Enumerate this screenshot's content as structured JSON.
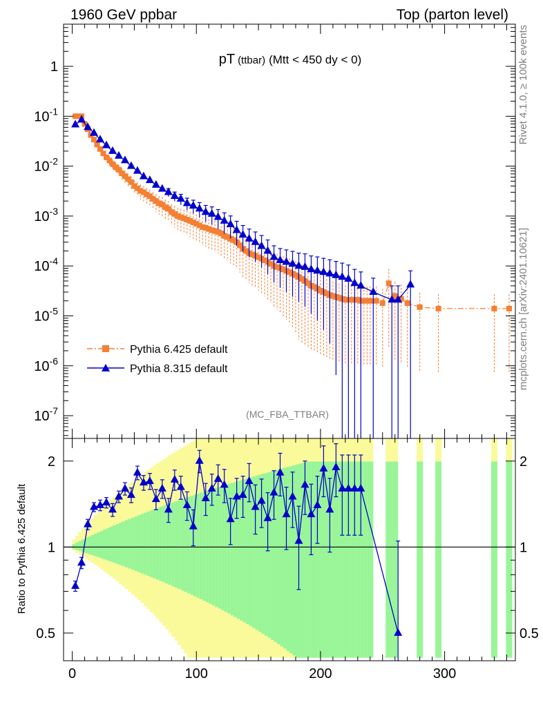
{
  "header": {
    "energy": "1960 GeV ppbar",
    "process": "Top (parton level)",
    "side_top": "Rivet 4.1.0, ≥ 100k events",
    "side_bottom": "mcplots.cern.ch [arXiv:2401.10621]"
  },
  "chart_data": [
    {
      "type": "line",
      "title_main": "pT",
      "title_sub": "(ttbar)",
      "title_tail": "(Mtt < 450 dy < 0)",
      "analysis_tag": "(MC_FBA_TTBAR)",
      "yscale": "log",
      "xlim": [
        -7,
        357
      ],
      "ylim": [
        3.5e-08,
        7
      ],
      "ytick_labels": [
        "10^-7",
        "10^-6",
        "10^-5",
        "10^-4",
        "10^-3",
        "10^-2",
        "10^-1",
        "1"
      ],
      "legend": [
        "Pythia 6.425 default",
        "Pythia 8.315 default"
      ],
      "legend_loc": "lower-left",
      "series": [
        {
          "name": "Pythia 6.425 default",
          "color": "#f57f32",
          "marker": "square",
          "line": "dash-dot",
          "x": [
            2.5,
            5,
            7.5,
            10,
            12.5,
            15,
            17.5,
            20,
            22.5,
            25,
            27.5,
            30,
            32.5,
            35,
            37.5,
            40,
            42.5,
            45,
            47.5,
            50,
            52.5,
            55,
            57.5,
            60,
            62.5,
            65,
            67.5,
            70,
            72.5,
            75,
            77.5,
            80,
            82.5,
            85,
            87.5,
            90,
            92.5,
            95,
            97.5,
            100,
            102.5,
            105,
            107.5,
            110,
            112.5,
            115,
            117.5,
            120,
            122.5,
            125,
            127.5,
            130,
            132.5,
            135,
            137.5,
            140,
            142.5,
            145,
            147.5,
            150,
            152.5,
            155,
            157.5,
            160,
            162.5,
            165,
            167.5,
            170,
            172.5,
            175,
            177.5,
            180,
            182.5,
            185,
            187.5,
            190,
            192.5,
            195,
            197.5,
            200,
            202.5,
            205,
            207.5,
            210,
            212.5,
            215,
            217.5,
            220,
            222.5,
            225,
            227.5,
            230,
            232.5,
            235,
            237.5,
            240,
            245,
            250,
            255,
            260,
            265,
            270,
            280,
            295,
            340,
            352
          ],
          "y": [
            0.1,
            0.1,
            0.1,
            0.07,
            0.055,
            0.042,
            0.034,
            0.027,
            0.022,
            0.018,
            0.015,
            0.013,
            0.011,
            0.0095,
            0.0085,
            0.0072,
            0.0063,
            0.0055,
            0.0048,
            0.004,
            0.0036,
            0.0032,
            0.003,
            0.0027,
            0.0025,
            0.0022,
            0.002,
            0.0018,
            0.0017,
            0.0015,
            0.0014,
            0.0012,
            0.0011,
            0.001,
            0.00095,
            0.0009,
            0.00085,
            0.0008,
            0.00075,
            0.0007,
            0.00065,
            0.0006,
            0.00058,
            0.00055,
            0.00052,
            0.0005,
            0.00048,
            0.00045,
            0.0004,
            0.00038,
            0.00035,
            0.00033,
            0.0003,
            0.00026,
            0.00022,
            0.0002,
            0.00018,
            0.00017,
            0.00016,
            0.00015,
            0.00014,
            0.00013,
            0.00012,
            0.00011,
            0.0001,
            9.5e-05,
            9e-05,
            8.5e-05,
            8e-05,
            7.5e-05,
            7e-05,
            6.5e-05,
            6e-05,
            5.5e-05,
            5e-05,
            4.5e-05,
            4e-05,
            3.8e-05,
            3.5e-05,
            3.2e-05,
            3e-05,
            2.8e-05,
            2.6e-05,
            2.5e-05,
            2.4e-05,
            2.3e-05,
            2.2e-05,
            2.1e-05,
            2.1e-05,
            2.1e-05,
            2.1e-05,
            2.1e-05,
            2e-05,
            2e-05,
            2e-05,
            2e-05,
            2e-05,
            1.8e-05,
            4.5e-05,
            2.5e-05,
            2.2e-05,
            1.8e-05,
            1.5e-05,
            1.4e-05,
            1.4e-05,
            1.4e-05
          ]
        },
        {
          "name": "Pythia 8.315 default",
          "color": "#0000cc",
          "marker": "triangle",
          "line": "solid",
          "x": [
            2.5,
            7.5,
            12.5,
            17.5,
            22.5,
            27.5,
            32.5,
            37.5,
            42.5,
            47.5,
            52.5,
            57.5,
            62.5,
            67.5,
            72.5,
            77.5,
            82.5,
            87.5,
            92.5,
            97.5,
            102.5,
            107.5,
            112.5,
            117.5,
            122.5,
            127.5,
            132.5,
            137.5,
            142.5,
            147.5,
            152.5,
            157.5,
            162.5,
            167.5,
            172.5,
            177.5,
            182.5,
            187.5,
            192.5,
            197.5,
            202.5,
            207.5,
            212.5,
            217.5,
            222.5,
            227.5,
            232.5,
            242.5,
            257.5,
            262.5,
            272.5
          ],
          "y": [
            0.068,
            0.085,
            0.06,
            0.046,
            0.034,
            0.026,
            0.02,
            0.016,
            0.013,
            0.01,
            0.008,
            0.0062,
            0.0052,
            0.0042,
            0.0035,
            0.003,
            0.0025,
            0.0022,
            0.0018,
            0.0016,
            0.0014,
            0.0012,
            0.0011,
            0.00095,
            0.0008,
            0.00068,
            0.00052,
            0.00042,
            0.00035,
            0.0003,
            0.00025,
            0.0002,
            0.00015,
            0.00013,
            0.00012,
            0.00011,
            0.0001,
            9.5e-05,
            8.5e-05,
            8e-05,
            7.5e-05,
            7e-05,
            6.5e-05,
            6e-05,
            5.5e-05,
            4.5e-05,
            4e-05,
            3e-05,
            2.1e-05,
            2.1e-05,
            4.2e-05
          ]
        }
      ]
    },
    {
      "type": "line",
      "ylabel": "Ratio to Pythia 6.425 default",
      "yscale": "log",
      "xlim": [
        -7,
        357
      ],
      "ylim": [
        0.4,
        2.4
      ],
      "xticks": [
        0,
        100,
        200,
        300
      ],
      "yticks": [
        0.5,
        1,
        2
      ],
      "band_colors": {
        "inner": "#98f598",
        "outer": "#fafa9a"
      },
      "series": [
        {
          "name": "Pythia 8.315 default",
          "color": "#0000cc",
          "marker": "triangle",
          "x": [
            2.5,
            7.5,
            12.5,
            17.5,
            22.5,
            27.5,
            32.5,
            37.5,
            42.5,
            47.5,
            52.5,
            57.5,
            62.5,
            67.5,
            72.5,
            77.5,
            82.5,
            87.5,
            92.5,
            97.5,
            102.5,
            107.5,
            112.5,
            117.5,
            122.5,
            127.5,
            132.5,
            137.5,
            142.5,
            147.5,
            152.5,
            157.5,
            162.5,
            167.5,
            172.5,
            177.5,
            182.5,
            187.5,
            192.5,
            197.5,
            202.5,
            207.5,
            212.5,
            217.5,
            222.5,
            227.5,
            232.5,
            262.5
          ],
          "y": [
            0.73,
            0.88,
            1.2,
            1.38,
            1.4,
            1.43,
            1.35,
            1.5,
            1.6,
            1.52,
            1.82,
            1.68,
            1.7,
            1.47,
            1.6,
            1.35,
            1.72,
            1.62,
            1.4,
            1.18,
            2,
            1.48,
            1.6,
            1.73,
            1.65,
            1.25,
            1.5,
            1.52,
            1.7,
            1.38,
            1.45,
            1.26,
            1.55,
            1.82,
            1.3,
            1.5,
            1.05,
            1.65,
            1.3,
            1.4,
            1.88,
            1.35,
            1.9,
            1.6,
            1.6,
            1.6,
            1.6,
            0.5
          ],
          "yerr": [
            0.03,
            0.04,
            0.05,
            0.05,
            0.06,
            0.06,
            0.07,
            0.07,
            0.08,
            0.09,
            0.1,
            0.1,
            0.11,
            0.12,
            0.12,
            0.13,
            0.14,
            0.15,
            0.16,
            0.17,
            0.18,
            0.19,
            0.2,
            0.21,
            0.22,
            0.23,
            0.24,
            0.25,
            0.26,
            0.27,
            0.28,
            0.29,
            0.3,
            0.31,
            0.32,
            0.33,
            0.34,
            0.35,
            0.36,
            0.37,
            0.38,
            0.39,
            0.4,
            0.5,
            0.5,
            0.5,
            0.5,
            0.55
          ]
        }
      ]
    }
  ]
}
